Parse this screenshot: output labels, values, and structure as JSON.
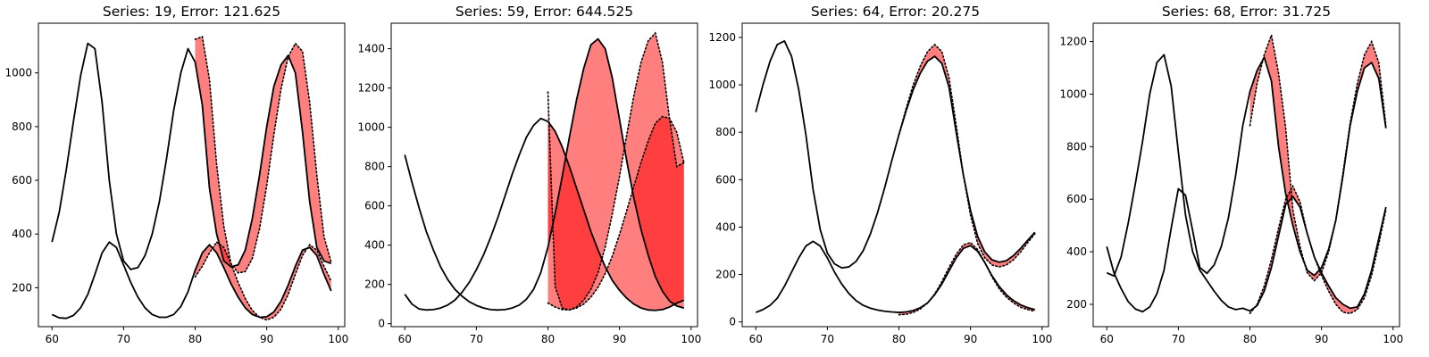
{
  "chart_data": [
    {
      "type": "line",
      "title": "Series: 19, Error: 121.625",
      "xlim": [
        58.1,
        100.9
      ],
      "ylim": [
        55,
        1185
      ],
      "xticks": [
        60,
        70,
        80,
        90,
        100
      ],
      "yticks": [
        200,
        400,
        600,
        800,
        1000
      ],
      "band_color": "#ff0000",
      "band_opacity": 0.5,
      "series": [
        {
          "x": [
            60,
            61,
            62,
            63,
            64,
            65,
            66,
            67,
            68,
            69,
            70,
            71,
            72,
            73,
            74,
            75,
            76,
            77,
            78,
            79,
            80,
            81,
            82,
            83,
            84,
            85,
            86,
            87,
            88,
            89,
            90,
            91,
            92,
            93,
            94,
            95,
            96,
            97,
            98,
            99
          ],
          "values": [
            370,
            480,
            640,
            820,
            990,
            1110,
            1090,
            890,
            600,
            400,
            300,
            268,
            275,
            320,
            400,
            520,
            680,
            860,
            1000,
            1090,
            1040,
            880,
            570,
            400,
            300,
            278,
            285,
            340,
            460,
            620,
            800,
            950,
            1030,
            1065,
            1000,
            780,
            520,
            350,
            300,
            290
          ]
        },
        {
          "x": [
            60,
            61,
            62,
            63,
            64,
            65,
            66,
            67,
            68,
            69,
            70,
            71,
            72,
            73,
            74,
            75,
            76,
            77,
            78,
            79,
            80,
            81,
            82,
            83,
            84,
            85,
            86,
            87,
            88,
            89,
            90,
            91,
            92,
            93,
            94,
            95,
            96,
            97,
            98,
            99
          ],
          "values": [
            100,
            88,
            86,
            97,
            125,
            175,
            250,
            330,
            370,
            350,
            285,
            220,
            165,
            125,
            100,
            90,
            90,
            100,
            130,
            185,
            265,
            330,
            360,
            330,
            275,
            215,
            165,
            125,
            100,
            90,
            92,
            110,
            150,
            210,
            280,
            340,
            350,
            320,
            250,
            188
          ]
        }
      ],
      "predicted": [
        {
          "x": [
            80,
            81,
            82,
            83,
            84,
            85,
            86,
            87,
            88,
            89,
            90,
            91,
            92,
            93,
            94,
            95,
            96,
            97,
            98,
            99
          ],
          "values": [
            1125,
            1135,
            975,
            660,
            430,
            290,
            255,
            260,
            310,
            420,
            580,
            770,
            940,
            1060,
            1110,
            1080,
            890,
            620,
            390,
            295
          ]
        },
        {
          "x": [
            80,
            81,
            82,
            83,
            84,
            85,
            86,
            87,
            88,
            89,
            90,
            91,
            92,
            93,
            94,
            95,
            96,
            97,
            98,
            99
          ],
          "values": [
            240,
            280,
            330,
            370,
            350,
            290,
            220,
            160,
            115,
            90,
            80,
            90,
            120,
            175,
            250,
            320,
            360,
            340,
            280,
            225
          ]
        }
      ]
    },
    {
      "type": "line",
      "title": "Series: 59, Error: 644.525",
      "xlim": [
        58.1,
        100.9
      ],
      "ylim": [
        -15,
        1530
      ],
      "xticks": [
        60,
        70,
        80,
        90,
        100
      ],
      "yticks": [
        0,
        200,
        400,
        600,
        800,
        1000,
        1200,
        1400
      ],
      "band_color": "#ff0000",
      "band_opacity": 0.5,
      "series": [
        {
          "x": [
            60,
            61,
            62,
            63,
            64,
            65,
            66,
            67,
            68,
            69,
            70,
            71,
            72,
            73,
            74,
            75,
            76,
            77,
            78,
            79,
            80,
            81,
            82,
            83,
            84,
            85,
            86,
            87,
            88,
            89,
            90,
            91,
            92,
            93,
            94,
            95,
            96,
            97,
            98,
            99
          ],
          "values": [
            860,
            720,
            590,
            470,
            375,
            290,
            225,
            175,
            140,
            112,
            93,
            80,
            72,
            70,
            72,
            80,
            95,
            125,
            175,
            260,
            390,
            560,
            750,
            950,
            1140,
            1300,
            1420,
            1450,
            1400,
            1250,
            1040,
            830,
            640,
            480,
            350,
            240,
            165,
            115,
            90,
            80
          ]
        },
        {
          "x": [
            60,
            61,
            62,
            63,
            64,
            65,
            66,
            67,
            68,
            69,
            70,
            71,
            72,
            73,
            74,
            75,
            76,
            77,
            78,
            79,
            80,
            81,
            82,
            83,
            84,
            85,
            86,
            87,
            88,
            89,
            90,
            91,
            92,
            93,
            94,
            95,
            96,
            97,
            98,
            99
          ],
          "values": [
            150,
            100,
            75,
            70,
            72,
            80,
            95,
            120,
            160,
            210,
            275,
            350,
            440,
            540,
            650,
            760,
            860,
            950,
            1010,
            1045,
            1030,
            980,
            900,
            800,
            690,
            580,
            470,
            375,
            290,
            220,
            170,
            130,
            100,
            80,
            70,
            68,
            72,
            85,
            105,
            120
          ]
        }
      ],
      "predicted": [
        {
          "x": [
            80,
            81,
            82,
            83,
            84,
            85,
            86,
            87,
            88,
            89,
            90,
            91,
            92,
            93,
            94,
            95,
            96,
            97,
            98,
            99
          ],
          "values": [
            1180,
            190,
            80,
            70,
            85,
            120,
            175,
            260,
            390,
            560,
            750,
            960,
            1160,
            1330,
            1440,
            1480,
            1330,
            1040,
            800,
            820
          ]
        },
        {
          "x": [
            80,
            81,
            82,
            83,
            84,
            85,
            86,
            87,
            88,
            89,
            90,
            91,
            92,
            93,
            94,
            95,
            96,
            97,
            98,
            99
          ],
          "values": [
            105,
            85,
            72,
            70,
            80,
            100,
            135,
            185,
            255,
            345,
            455,
            575,
            700,
            820,
            930,
            1020,
            1055,
            1045,
            975,
            820
          ]
        }
      ]
    },
    {
      "type": "line",
      "title": "Series: 64, Error: 20.275",
      "xlim": [
        58.1,
        100.9
      ],
      "ylim": [
        -20,
        1260
      ],
      "xticks": [
        60,
        70,
        80,
        90,
        100
      ],
      "yticks": [
        0,
        200,
        400,
        600,
        800,
        1000,
        1200
      ],
      "band_color": "#ff0000",
      "band_opacity": 0.5,
      "series": [
        {
          "x": [
            60,
            61,
            62,
            63,
            64,
            65,
            66,
            67,
            68,
            69,
            70,
            71,
            72,
            73,
            74,
            75,
            76,
            77,
            78,
            79,
            80,
            81,
            82,
            83,
            84,
            85,
            86,
            87,
            88,
            89,
            90,
            91,
            92,
            93,
            94,
            95,
            96,
            97,
            98,
            99
          ],
          "values": [
            885,
            1000,
            1100,
            1170,
            1185,
            1120,
            980,
            790,
            560,
            390,
            290,
            245,
            228,
            232,
            255,
            300,
            370,
            460,
            565,
            680,
            790,
            890,
            980,
            1050,
            1100,
            1120,
            1090,
            990,
            800,
            620,
            470,
            360,
            295,
            262,
            252,
            258,
            280,
            310,
            345,
            378
          ]
        },
        {
          "x": [
            60,
            61,
            62,
            63,
            64,
            65,
            66,
            67,
            68,
            69,
            70,
            71,
            72,
            73,
            74,
            75,
            76,
            77,
            78,
            79,
            80,
            81,
            82,
            83,
            84,
            85,
            86,
            87,
            88,
            89,
            90,
            91,
            92,
            93,
            94,
            95,
            96,
            97,
            98,
            99
          ],
          "values": [
            40,
            52,
            70,
            100,
            150,
            210,
            270,
            320,
            340,
            320,
            270,
            210,
            160,
            120,
            90,
            70,
            58,
            50,
            45,
            42,
            40,
            42,
            48,
            60,
            80,
            115,
            160,
            215,
            270,
            310,
            322,
            298,
            250,
            195,
            150,
            115,
            90,
            72,
            60,
            52
          ]
        }
      ],
      "predicted": [
        {
          "x": [
            80,
            81,
            82,
            83,
            84,
            85,
            86,
            87,
            88,
            89,
            90,
            91,
            92,
            93,
            94,
            95,
            96,
            97,
            98,
            99
          ],
          "values": [
            790,
            900,
            1000,
            1080,
            1140,
            1170,
            1140,
            1030,
            830,
            620,
            450,
            330,
            270,
            240,
            232,
            240,
            262,
            295,
            335,
            372
          ]
        },
        {
          "x": [
            80,
            81,
            82,
            83,
            84,
            85,
            86,
            87,
            88,
            89,
            90,
            91,
            92,
            93,
            94,
            95,
            96,
            97,
            98,
            99
          ],
          "values": [
            30,
            32,
            40,
            55,
            80,
            118,
            170,
            230,
            285,
            325,
            335,
            305,
            250,
            190,
            140,
            105,
            80,
            62,
            52,
            45
          ]
        }
      ]
    },
    {
      "type": "line",
      "title": "Series: 68, Error: 31.725",
      "xlim": [
        58.1,
        100.9
      ],
      "ylim": [
        115,
        1270
      ],
      "xticks": [
        60,
        70,
        80,
        90,
        100
      ],
      "yticks": [
        200,
        400,
        600,
        800,
        1000,
        1200
      ],
      "band_color": "#ff0000",
      "band_opacity": 0.5,
      "series": [
        {
          "x": [
            60,
            61,
            62,
            63,
            64,
            65,
            66,
            67,
            68,
            69,
            70,
            71,
            72,
            73,
            74,
            75,
            76,
            77,
            78,
            79,
            80,
            81,
            82,
            83,
            84,
            85,
            86,
            87,
            88,
            89,
            90,
            91,
            92,
            93,
            94,
            95,
            96,
            97,
            98,
            99
          ],
          "values": [
            420,
            320,
            260,
            210,
            182,
            172,
            190,
            240,
            330,
            490,
            640,
            615,
            480,
            340,
            318,
            350,
            420,
            530,
            690,
            880,
            1010,
            1090,
            1140,
            1050,
            800,
            620,
            500,
            400,
            330,
            310,
            340,
            410,
            520,
            690,
            880,
            1010,
            1100,
            1120,
            1060,
            870
          ]
        },
        {
          "x": [
            60,
            61,
            62,
            63,
            64,
            65,
            66,
            67,
            68,
            69,
            70,
            71,
            72,
            73,
            74,
            75,
            76,
            77,
            78,
            79,
            80,
            81,
            82,
            83,
            84,
            85,
            86,
            87,
            88,
            89,
            90,
            91,
            92,
            93,
            94,
            95,
            96,
            97,
            98,
            99
          ],
          "values": [
            320,
            308,
            380,
            510,
            660,
            820,
            1000,
            1120,
            1150,
            1030,
            780,
            540,
            400,
            330,
            290,
            250,
            215,
            190,
            180,
            185,
            175,
            195,
            250,
            340,
            460,
            580,
            610,
            570,
            470,
            380,
            320,
            270,
            225,
            200,
            185,
            190,
            240,
            330,
            450,
            570
          ]
        }
      ],
      "predicted": [
        {
          "x": [
            80,
            81,
            82,
            83,
            84,
            85,
            86,
            87,
            88,
            89,
            90,
            91,
            92,
            93,
            94,
            95,
            96,
            97,
            98,
            99
          ],
          "values": [
            880,
            1040,
            1150,
            1225,
            1080,
            870,
            560,
            420,
            320,
            290,
            320,
            400,
            520,
            700,
            890,
            1040,
            1150,
            1200,
            1120,
            880
          ]
        },
        {
          "x": [
            80,
            81,
            82,
            83,
            84,
            85,
            86,
            87,
            88,
            89,
            90,
            91,
            92,
            93,
            94,
            95,
            96,
            97,
            98,
            99
          ],
          "values": [
            165,
            200,
            270,
            370,
            490,
            600,
            650,
            590,
            470,
            380,
            310,
            250,
            200,
            170,
            165,
            180,
            225,
            310,
            430,
            560
          ]
        }
      ]
    }
  ]
}
